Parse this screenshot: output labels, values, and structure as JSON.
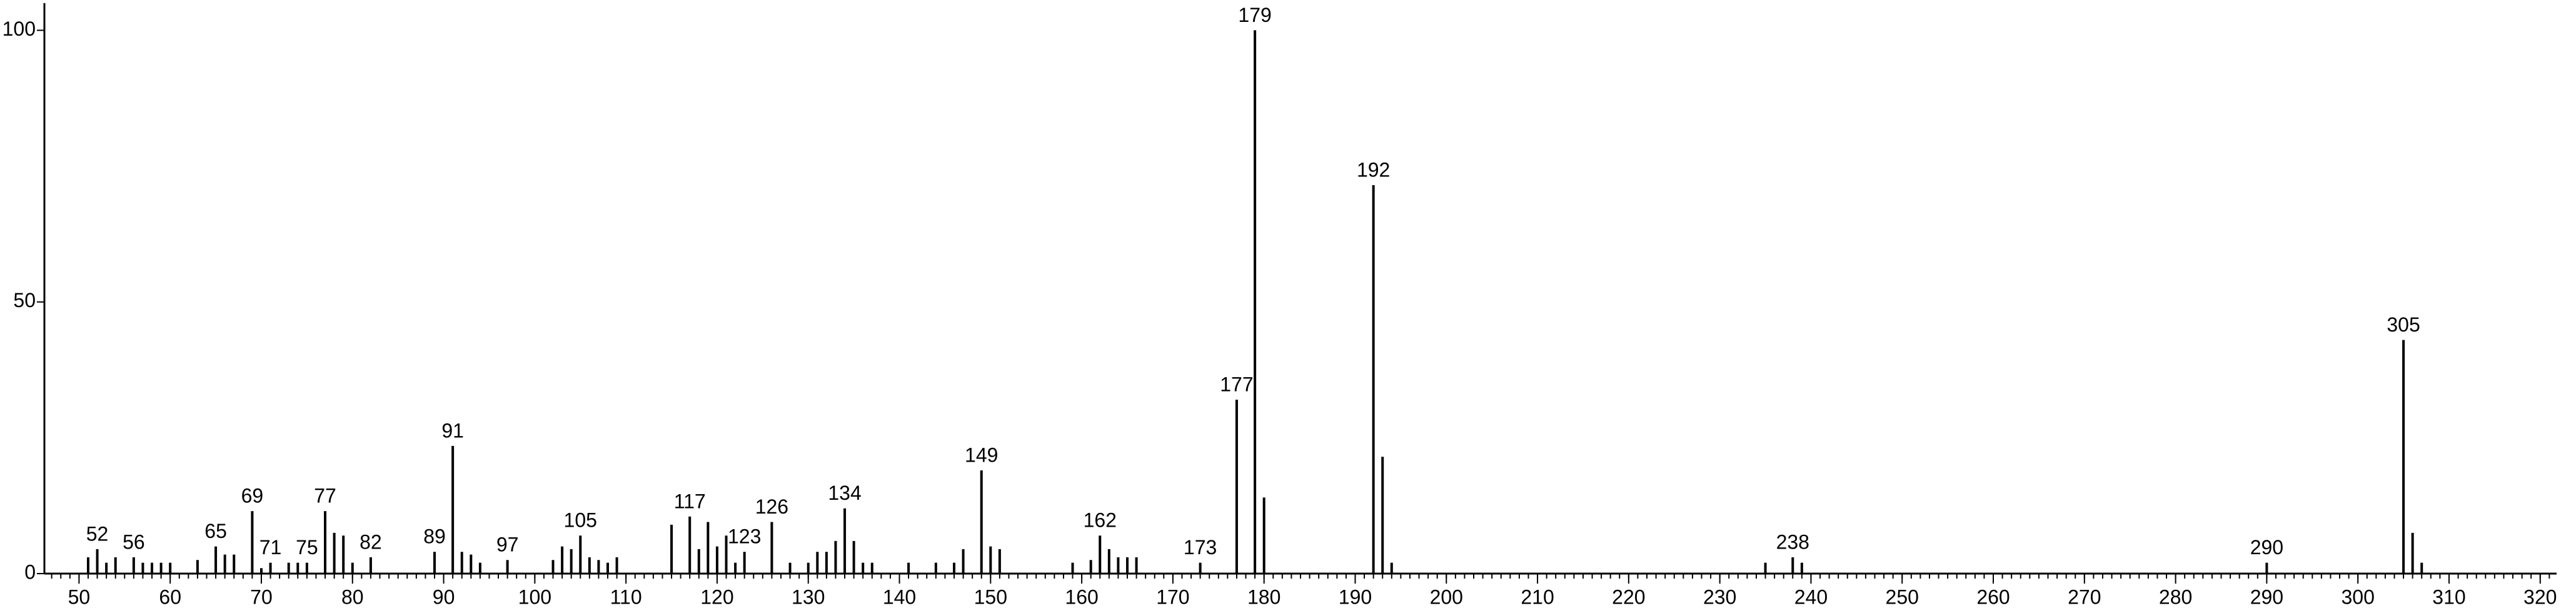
{
  "chart_data": {
    "type": "stick",
    "x": [
      51,
      52,
      53,
      54,
      56,
      57,
      58,
      59,
      60,
      63,
      65,
      66,
      67,
      69,
      70,
      71,
      73,
      74,
      75,
      77,
      78,
      79,
      80,
      82,
      89,
      91,
      92,
      93,
      94,
      97,
      102,
      103,
      104,
      105,
      106,
      107,
      108,
      109,
      115,
      117,
      118,
      119,
      120,
      121,
      122,
      123,
      126,
      128,
      130,
      131,
      132,
      133,
      134,
      135,
      136,
      137,
      141,
      144,
      146,
      147,
      149,
      150,
      151,
      159,
      161,
      162,
      163,
      164,
      165,
      166,
      173,
      177,
      179,
      180,
      192,
      193,
      194,
      235,
      238,
      239,
      290,
      305,
      306,
      307
    ],
    "values": [
      3,
      4.5,
      2,
      3,
      3,
      2,
      2,
      2,
      2,
      2.5,
      5,
      3.5,
      3.5,
      11.5,
      1,
      2,
      2,
      2,
      2,
      11.5,
      7.5,
      7,
      2,
      3,
      4,
      23.5,
      4,
      3.5,
      2,
      2.5,
      2.5,
      5,
      4.5,
      7,
      3,
      2.5,
      2,
      3,
      9,
      10.5,
      4.5,
      9.5,
      5,
      7,
      2,
      4,
      9.5,
      2,
      2,
      4,
      4,
      6,
      12,
      6,
      2,
      2,
      2,
      2,
      2,
      4.5,
      19,
      5,
      4.5,
      2,
      2.5,
      7,
      4.5,
      3,
      3,
      3,
      2,
      32,
      100,
      14,
      71.5,
      21.5,
      2,
      2,
      3,
      2,
      2,
      43,
      7.5,
      2
    ],
    "peak_labels": [
      null,
      "52",
      null,
      null,
      "56",
      null,
      null,
      null,
      null,
      null,
      "65",
      null,
      null,
      "69",
      null,
      "71",
      null,
      null,
      "75",
      "77",
      null,
      null,
      null,
      "82",
      "89",
      "91",
      null,
      null,
      null,
      "97",
      null,
      null,
      null,
      "105",
      null,
      null,
      null,
      null,
      null,
      "117",
      null,
      null,
      null,
      null,
      null,
      "123",
      "126",
      null,
      null,
      null,
      null,
      null,
      "134",
      null,
      null,
      null,
      null,
      null,
      null,
      null,
      "149",
      null,
      null,
      null,
      null,
      "162",
      null,
      null,
      null,
      null,
      "173",
      "177",
      "179",
      null,
      "192",
      null,
      null,
      null,
      "238",
      null,
      "290",
      "305",
      null,
      null
    ],
    "color": "#000000",
    "xlim": [
      46.2,
      321.8
    ],
    "ylim": [
      0,
      105
    ],
    "xticks": [
      50,
      60,
      70,
      80,
      90,
      100,
      110,
      120,
      130,
      140,
      150,
      160,
      170,
      180,
      190,
      200,
      210,
      220,
      230,
      240,
      250,
      260,
      270,
      280,
      290,
      300,
      310,
      320
    ],
    "minor_xtick_step": 1,
    "yticks": [
      0,
      50,
      100
    ]
  }
}
